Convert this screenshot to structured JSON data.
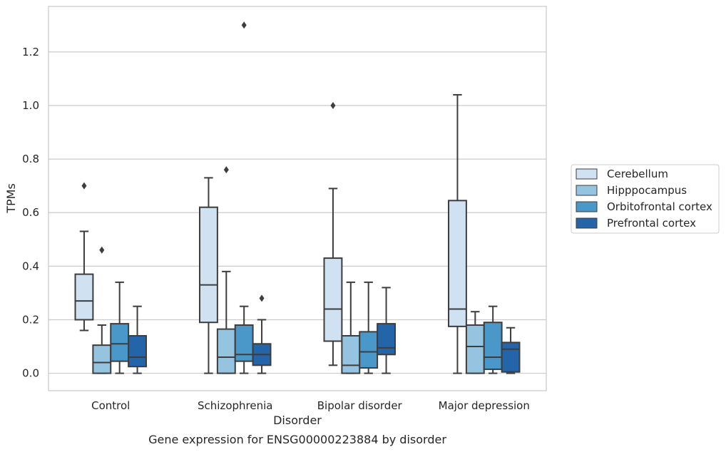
{
  "chart_data": {
    "type": "box",
    "xlabel": "Disorder",
    "ylabel": "TPMs",
    "caption": "Gene expression for ENSG00000223884 by disorder",
    "ylim": [
      -0.065,
      1.37
    ],
    "yticks": [
      0.0,
      0.2,
      0.4,
      0.6,
      0.8,
      1.0,
      1.2
    ],
    "ytick_labels": [
      "0.0",
      "0.2",
      "0.4",
      "0.6",
      "0.8",
      "1.0",
      "1.2"
    ],
    "grid": "horizontal",
    "legend_position": "right",
    "categories": [
      "Control",
      "Schizophrenia",
      "Bipolar disorder",
      "Major depression"
    ],
    "series": [
      {
        "name": "Cerebellum",
        "color": "#d0e1f2",
        "boxes": [
          {
            "whislo": 0.16,
            "q1": 0.2,
            "med": 0.27,
            "q3": 0.37,
            "whishi": 0.53,
            "fliers": [
              0.7
            ]
          },
          {
            "whislo": 0.0,
            "q1": 0.19,
            "med": 0.33,
            "q3": 0.62,
            "whishi": 0.73,
            "fliers": []
          },
          {
            "whislo": 0.03,
            "q1": 0.12,
            "med": 0.24,
            "q3": 0.43,
            "whishi": 0.69,
            "fliers": [
              1.0
            ]
          },
          {
            "whislo": 0.0,
            "q1": 0.175,
            "med": 0.24,
            "q3": 0.645,
            "whishi": 1.04,
            "fliers": []
          }
        ]
      },
      {
        "name": "Hipppocampus",
        "color": "#94c4df",
        "boxes": [
          {
            "whislo": 0.0,
            "q1": 0.0,
            "med": 0.04,
            "q3": 0.105,
            "whishi": 0.18,
            "fliers": [
              0.46
            ]
          },
          {
            "whislo": 0.0,
            "q1": 0.0,
            "med": 0.06,
            "q3": 0.165,
            "whishi": 0.38,
            "fliers": [
              0.76
            ]
          },
          {
            "whislo": 0.0,
            "q1": 0.0,
            "med": 0.03,
            "q3": 0.14,
            "whishi": 0.34,
            "fliers": []
          },
          {
            "whislo": 0.0,
            "q1": 0.0,
            "med": 0.1,
            "q3": 0.18,
            "whishi": 0.23,
            "fliers": []
          }
        ]
      },
      {
        "name": "Orbitofrontal cortex",
        "color": "#4a98c9",
        "boxes": [
          {
            "whislo": 0.0,
            "q1": 0.045,
            "med": 0.11,
            "q3": 0.185,
            "whishi": 0.34,
            "fliers": []
          },
          {
            "whislo": 0.0,
            "q1": 0.045,
            "med": 0.07,
            "q3": 0.18,
            "whishi": 0.25,
            "fliers": [
              1.3
            ]
          },
          {
            "whislo": 0.0,
            "q1": 0.02,
            "med": 0.08,
            "q3": 0.155,
            "whishi": 0.34,
            "fliers": []
          },
          {
            "whislo": 0.0,
            "q1": 0.015,
            "med": 0.06,
            "q3": 0.19,
            "whishi": 0.25,
            "fliers": []
          }
        ]
      },
      {
        "name": "Prefrontal cortex",
        "color": "#2465a9",
        "boxes": [
          {
            "whislo": 0.0,
            "q1": 0.025,
            "med": 0.06,
            "q3": 0.14,
            "whishi": 0.25,
            "fliers": []
          },
          {
            "whislo": 0.0,
            "q1": 0.03,
            "med": 0.07,
            "q3": 0.11,
            "whishi": 0.2,
            "fliers": [
              0.28
            ]
          },
          {
            "whislo": 0.0,
            "q1": 0.07,
            "med": 0.095,
            "q3": 0.185,
            "whishi": 0.32,
            "fliers": []
          },
          {
            "whislo": 0.0,
            "q1": 0.005,
            "med": 0.09,
            "q3": 0.115,
            "whishi": 0.17,
            "fliers": []
          }
        ]
      }
    ]
  }
}
